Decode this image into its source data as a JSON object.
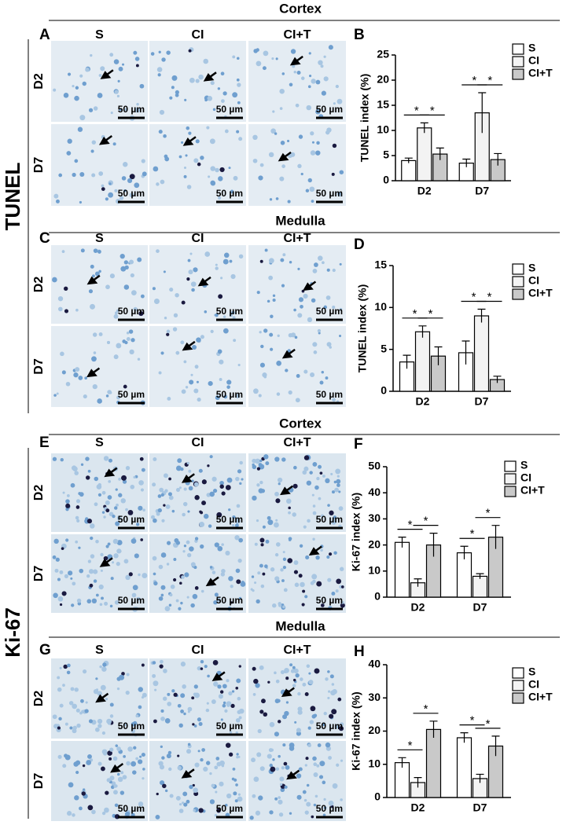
{
  "labels": {
    "tunel": "TUNEL",
    "ki67": "Ki-67",
    "scale_bar": "50 µm"
  },
  "sections": [
    {
      "title": "Cortex",
      "letter": "A",
      "columns": [
        "S",
        "CI",
        "CI+T"
      ],
      "rows": [
        "D2",
        "D7"
      ]
    },
    {
      "title": "Medulla",
      "letter": "C",
      "columns": [
        "S",
        "CI",
        "CI+T"
      ],
      "rows": [
        "D2",
        "D7"
      ]
    },
    {
      "title": "Cortex",
      "letter": "E",
      "columns": [
        "S",
        "CI",
        "CI+T"
      ],
      "rows": [
        "D2",
        "D7"
      ]
    },
    {
      "title": "Medulla",
      "letter": "G",
      "columns": [
        "S",
        "CI",
        "CI+T"
      ],
      "rows": [
        "D2",
        "D7"
      ]
    }
  ],
  "chart_data": [
    {
      "type": "bar",
      "letter": "B",
      "y_label": "TUNEL index (%)",
      "categories": [
        "D2",
        "D7"
      ],
      "significance": "*",
      "series": [
        {
          "name": "S",
          "color": "#ffffff",
          "values": [
            4,
            3.5
          ],
          "errors": [
            0.5,
            0.8
          ]
        },
        {
          "name": "CI",
          "color": "#f3f3f3",
          "values": [
            10.5,
            13.5
          ],
          "errors": [
            1,
            4
          ]
        },
        {
          "name": "CI+T",
          "color": "#c9c9c9",
          "values": [
            5.3,
            4.2
          ],
          "errors": [
            1.2,
            1.2
          ]
        }
      ],
      "ylim": [
        0,
        25
      ],
      "yticks": [
        0,
        5,
        10,
        15,
        20,
        25
      ]
    },
    {
      "type": "bar",
      "letter": "D",
      "y_label": "TUNEL index (%)",
      "categories": [
        "D2",
        "D7"
      ],
      "significance": "*",
      "series": [
        {
          "name": "S",
          "color": "#ffffff",
          "values": [
            3.5,
            4.6
          ],
          "errors": [
            0.8,
            1.4
          ]
        },
        {
          "name": "CI",
          "color": "#f3f3f3",
          "values": [
            7.1,
            9
          ],
          "errors": [
            0.7,
            0.8
          ]
        },
        {
          "name": "CI+T",
          "color": "#c9c9c9",
          "values": [
            4.2,
            1.4
          ],
          "errors": [
            1.1,
            0.4
          ]
        }
      ],
      "ylim": [
        0,
        15
      ],
      "yticks": [
        0,
        5,
        10,
        15
      ]
    },
    {
      "type": "bar",
      "letter": "F",
      "y_label": "Ki-67 index (%)",
      "categories": [
        "D2",
        "D7"
      ],
      "significance": "*",
      "series": [
        {
          "name": "S",
          "color": "#ffffff",
          "values": [
            21,
            17
          ],
          "errors": [
            2,
            2.5
          ]
        },
        {
          "name": "CI",
          "color": "#f3f3f3",
          "values": [
            5.5,
            8
          ],
          "errors": [
            1.5,
            1
          ]
        },
        {
          "name": "CI+T",
          "color": "#c9c9c9",
          "values": [
            20,
            23
          ],
          "errors": [
            4.5,
            4.5
          ]
        }
      ],
      "ylim": [
        0,
        50
      ],
      "yticks": [
        0,
        10,
        20,
        30,
        40,
        50
      ]
    },
    {
      "type": "bar",
      "letter": "H",
      "y_label": "Ki-67 index (%)",
      "categories": [
        "D2",
        "D7"
      ],
      "significance": "*",
      "series": [
        {
          "name": "S",
          "color": "#ffffff",
          "values": [
            10.5,
            18
          ],
          "errors": [
            1.5,
            1.5
          ]
        },
        {
          "name": "CI",
          "color": "#f3f3f3",
          "values": [
            4.5,
            5.7
          ],
          "errors": [
            1.5,
            1.3
          ]
        },
        {
          "name": "CI+T",
          "color": "#c9c9c9",
          "values": [
            20.5,
            15.5
          ],
          "errors": [
            2.5,
            3
          ]
        }
      ],
      "ylim": [
        0,
        40
      ],
      "yticks": [
        0,
        10,
        20,
        30,
        40
      ]
    }
  ]
}
